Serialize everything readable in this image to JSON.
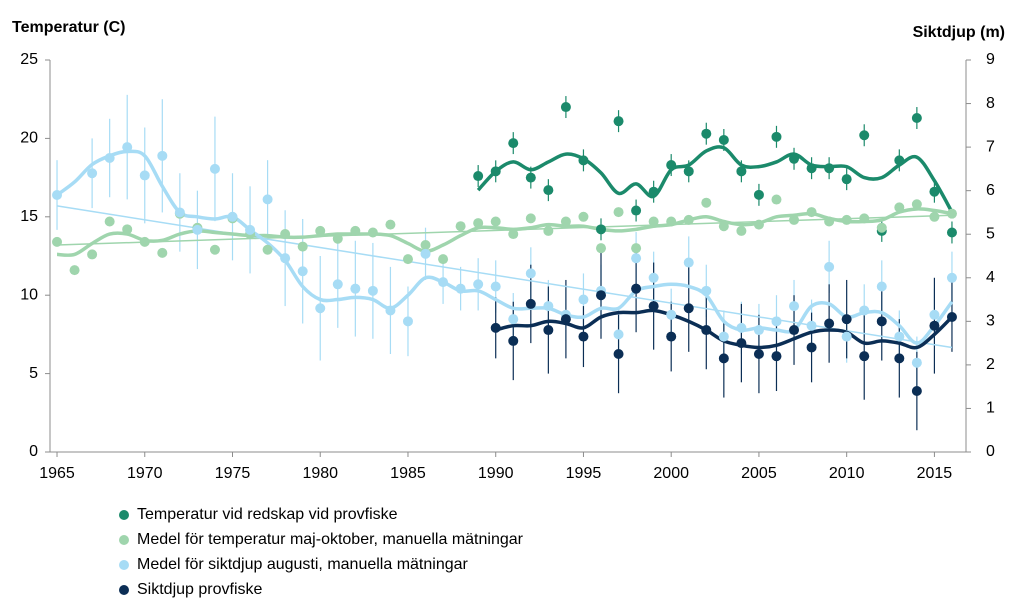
{
  "chart_data": {
    "type": "scatter",
    "y_label": "Temperatur (C)",
    "y2_label": "Siktdjup (m)",
    "x": [
      1965,
      1966,
      1967,
      1968,
      1969,
      1970,
      1971,
      1972,
      1973,
      1974,
      1975,
      1976,
      1977,
      1978,
      1979,
      1980,
      1981,
      1982,
      1983,
      1984,
      1985,
      1986,
      1987,
      1988,
      1989,
      1990,
      1991,
      1992,
      1993,
      1994,
      1995,
      1996,
      1997,
      1998,
      1999,
      2000,
      2001,
      2002,
      2003,
      2004,
      2005,
      2006,
      2007,
      2008,
      2009,
      2010,
      2011,
      2012,
      2013,
      2014,
      2015,
      2016
    ],
    "xlim": [
      1964.6,
      2016.8
    ],
    "xticks": [
      1965,
      1970,
      1975,
      1980,
      1985,
      1990,
      1995,
      2000,
      2005,
      2010,
      2015
    ],
    "ylim": [
      0,
      25
    ],
    "yticks": [
      0,
      5,
      10,
      15,
      20,
      25
    ],
    "y2lim": [
      0,
      9
    ],
    "y2ticks": [
      0,
      1,
      2,
      3,
      4,
      5,
      6,
      7,
      8,
      9
    ],
    "grid": false,
    "legend": "bottom-left",
    "series": [
      {
        "name": "Temperatur vid redskap vid provfiske",
        "color": "#1b8a6b",
        "axis": "y",
        "values": [
          null,
          null,
          null,
          null,
          null,
          null,
          null,
          null,
          null,
          null,
          null,
          null,
          null,
          null,
          null,
          null,
          null,
          null,
          null,
          null,
          null,
          null,
          null,
          null,
          17.6,
          17.9,
          19.7,
          17.5,
          16.7,
          22.0,
          18.6,
          14.2,
          21.1,
          15.4,
          16.6,
          18.3,
          17.9,
          20.3,
          19.9,
          17.9,
          16.4,
          20.1,
          18.7,
          18.1,
          18.1,
          17.4,
          20.2,
          14.1,
          18.6,
          21.3,
          16.6,
          14.0
        ],
        "errors": [
          null,
          null,
          null,
          null,
          null,
          null,
          null,
          null,
          null,
          null,
          null,
          null,
          null,
          null,
          null,
          null,
          null,
          null,
          null,
          null,
          null,
          null,
          null,
          null,
          0.7,
          0.7,
          0.7,
          0.7,
          0.7,
          0.7,
          0.7,
          0.7,
          0.7,
          0.7,
          0.7,
          0.7,
          0.7,
          0.7,
          0.7,
          0.7,
          0.7,
          0.7,
          0.7,
          0.7,
          0.7,
          0.7,
          0.7,
          0.7,
          0.7,
          0.7,
          0.7,
          0.7
        ],
        "smooth": [
          null,
          null,
          null,
          null,
          null,
          null,
          null,
          null,
          null,
          null,
          null,
          null,
          null,
          null,
          null,
          null,
          null,
          null,
          null,
          null,
          null,
          null,
          null,
          null,
          16.7,
          17.9,
          18.5,
          18.0,
          18.5,
          19.0,
          18.7,
          17.8,
          16.5,
          17.1,
          16.3,
          18.0,
          18.3,
          19.2,
          19.4,
          18.3,
          18.2,
          18.5,
          19.0,
          18.3,
          18.2,
          18.2,
          17.5,
          17.5,
          18.3,
          18.8,
          17.3,
          15.3
        ]
      },
      {
        "name": "Medel för temperatur maj-oktober, manuella mätningar",
        "color": "#9fd5ad",
        "axis": "y",
        "values": [
          13.4,
          11.6,
          12.6,
          14.7,
          14.2,
          13.4,
          12.7,
          15.2,
          14.3,
          12.9,
          14.9,
          13.9,
          12.9,
          13.9,
          13.1,
          14.1,
          13.6,
          14.1,
          14.0,
          14.5,
          12.3,
          13.2,
          12.3,
          14.4,
          14.6,
          14.7,
          13.9,
          14.9,
          14.1,
          14.7,
          15.0,
          13.0,
          15.3,
          13.0,
          14.7,
          14.7,
          14.8,
          15.9,
          14.4,
          14.1,
          14.5,
          16.1,
          14.8,
          15.3,
          14.7,
          14.8,
          14.9,
          14.3,
          15.6,
          15.8,
          15.0,
          15.2
        ],
        "smooth": [
          12.6,
          12.6,
          13.3,
          13.9,
          13.9,
          13.5,
          13.5,
          13.9,
          14.1,
          14.0,
          13.9,
          13.8,
          13.8,
          13.7,
          13.7,
          13.8,
          13.9,
          13.9,
          13.9,
          13.8,
          13.3,
          12.8,
          13.2,
          13.8,
          14.3,
          14.3,
          14.2,
          14.3,
          14.5,
          14.4,
          14.4,
          14.2,
          14.1,
          14.2,
          14.4,
          14.5,
          14.8,
          15.0,
          14.7,
          14.5,
          14.6,
          15.0,
          15.1,
          15.2,
          14.9,
          14.7,
          14.7,
          14.8,
          15.3,
          15.5,
          15.4,
          15.2
        ],
        "trend": [
          13.2,
          15.1
        ]
      },
      {
        "name": "Medel för siktdjup augusti, manuella mätningar",
        "color": "#a7dcf5",
        "axis": "y2",
        "values": [
          5.9,
          null,
          6.4,
          6.75,
          7.0,
          6.35,
          6.8,
          5.5,
          5.1,
          6.5,
          5.4,
          5.1,
          5.8,
          4.45,
          4.15,
          3.3,
          3.85,
          3.75,
          3.7,
          3.25,
          3.0,
          4.55,
          3.9,
          3.75,
          3.85,
          3.8,
          3.05,
          4.1,
          3.35,
          3.15,
          3.5,
          3.7,
          2.7,
          4.45,
          4.0,
          3.15,
          4.35,
          3.7,
          2.65,
          2.85,
          2.8,
          3.0,
          3.35,
          2.9,
          4.25,
          2.65,
          3.25,
          3.8,
          2.65,
          2.05,
          3.15,
          4.0
        ],
        "errors": [
          0.8,
          null,
          0.8,
          0.9,
          1.2,
          1.1,
          1.3,
          0.9,
          0.9,
          1.2,
          1.0,
          1.0,
          0.9,
          1.1,
          1.2,
          1.2,
          1.0,
          1.1,
          1.1,
          1.0,
          0.8,
          0.6,
          0.5,
          0.5,
          0.6,
          0.6,
          0.6,
          0.6,
          0.6,
          0.6,
          0.6,
          0.6,
          0.6,
          0.6,
          0.6,
          0.6,
          0.6,
          0.6,
          0.6,
          0.6,
          0.6,
          0.6,
          0.6,
          0.6,
          0.6,
          0.6,
          0.6,
          0.6,
          0.6,
          0.6,
          0.6,
          0.6
        ],
        "smooth": [
          5.9,
          6.2,
          6.6,
          6.8,
          6.9,
          6.8,
          6.1,
          5.5,
          5.4,
          5.35,
          5.4,
          5.1,
          4.8,
          4.4,
          3.8,
          3.5,
          3.5,
          3.55,
          3.5,
          3.3,
          3.6,
          4.0,
          3.9,
          3.7,
          3.7,
          3.5,
          3.3,
          3.3,
          3.3,
          3.15,
          3.1,
          3.3,
          3.3,
          3.7,
          3.8,
          3.85,
          3.8,
          3.6,
          3.0,
          2.8,
          2.85,
          2.8,
          2.8,
          3.35,
          3.4,
          3.1,
          3.2,
          3.2,
          2.9,
          2.5,
          2.9,
          3.45
        ],
        "trend": [
          5.65,
          2.4
        ]
      },
      {
        "name": "Siktdjup provfiske",
        "color": "#0b2e55",
        "axis": "y2",
        "values": [
          null,
          null,
          null,
          null,
          null,
          null,
          null,
          null,
          null,
          null,
          null,
          null,
          null,
          null,
          null,
          null,
          null,
          null,
          null,
          null,
          null,
          null,
          null,
          null,
          null,
          2.85,
          2.55,
          3.4,
          2.8,
          3.05,
          2.65,
          3.6,
          2.25,
          3.75,
          3.35,
          2.65,
          3.3,
          2.8,
          2.15,
          2.5,
          2.25,
          2.2,
          2.8,
          2.4,
          2.95,
          3.05,
          2.2,
          3.0,
          2.15,
          1.4,
          2.9,
          3.1
        ],
        "errors": [
          null,
          null,
          null,
          null,
          null,
          null,
          null,
          null,
          null,
          null,
          null,
          null,
          null,
          null,
          null,
          null,
          null,
          null,
          null,
          null,
          null,
          null,
          null,
          null,
          null,
          0.7,
          0.9,
          0.9,
          1.0,
          0.9,
          0.7,
          1.0,
          0.9,
          1.0,
          1.0,
          0.8,
          1.0,
          0.9,
          0.9,
          0.9,
          0.9,
          0.8,
          0.8,
          0.8,
          0.9,
          0.9,
          1.0,
          0.9,
          0.9,
          0.9,
          1.1,
          0.8
        ],
        "smooth": [
          null,
          null,
          null,
          null,
          null,
          null,
          null,
          null,
          null,
          null,
          null,
          null,
          null,
          null,
          null,
          null,
          null,
          null,
          null,
          null,
          null,
          null,
          null,
          null,
          null,
          2.8,
          2.9,
          2.9,
          3.0,
          2.95,
          2.85,
          3.1,
          3.2,
          3.2,
          3.25,
          3.15,
          3.0,
          2.8,
          2.55,
          2.45,
          2.4,
          2.45,
          2.6,
          2.75,
          2.8,
          2.75,
          2.5,
          2.55,
          2.5,
          2.4,
          2.7,
          3.1
        ]
      }
    ]
  }
}
